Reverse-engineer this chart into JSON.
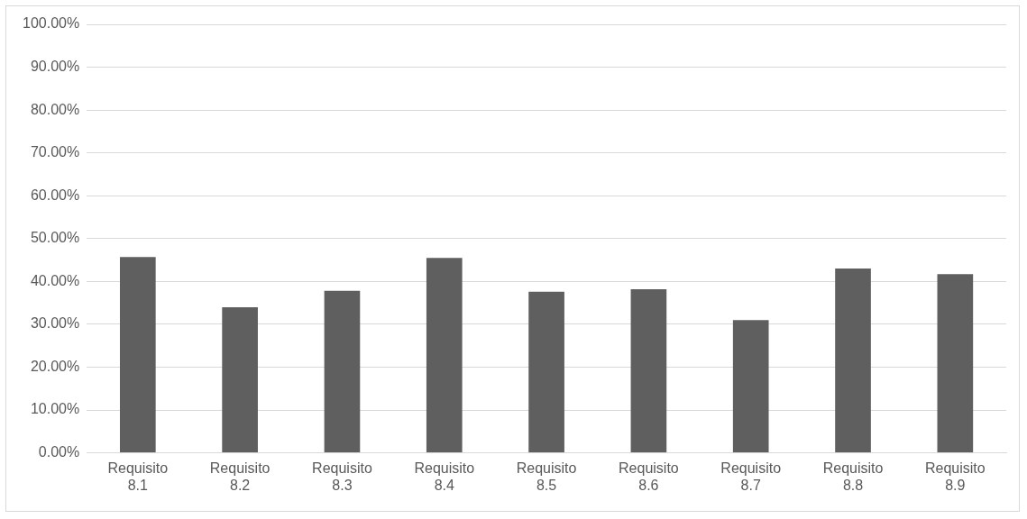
{
  "chart_data": {
    "type": "bar",
    "categories": [
      "Requisito 8.1",
      "Requisito 8.2",
      "Requisito 8.3",
      "Requisito 8.4",
      "Requisito 8.5",
      "Requisito 8.6",
      "Requisito 8.7",
      "Requisito 8.8",
      "Requisito 8.9"
    ],
    "values": [
      45.7,
      34.0,
      37.8,
      45.5,
      37.6,
      38.2,
      31.0,
      43.0,
      41.7
    ],
    "color": "#5f5f5f",
    "ylim": [
      0,
      100
    ],
    "yticks": [
      {
        "value": 0,
        "label": "0.00%"
      },
      {
        "value": 10,
        "label": "10.00%"
      },
      {
        "value": 20,
        "label": "20.00%"
      },
      {
        "value": 30,
        "label": "30.00%"
      },
      {
        "value": 40,
        "label": "40.00%"
      },
      {
        "value": 50,
        "label": "50.00%"
      },
      {
        "value": 60,
        "label": "60.00%"
      },
      {
        "value": 70,
        "label": "70.00%"
      },
      {
        "value": 80,
        "label": "80.00%"
      },
      {
        "value": 90,
        "label": "90.00%"
      },
      {
        "value": 100,
        "label": "100.00%"
      }
    ],
    "grid": "y"
  }
}
